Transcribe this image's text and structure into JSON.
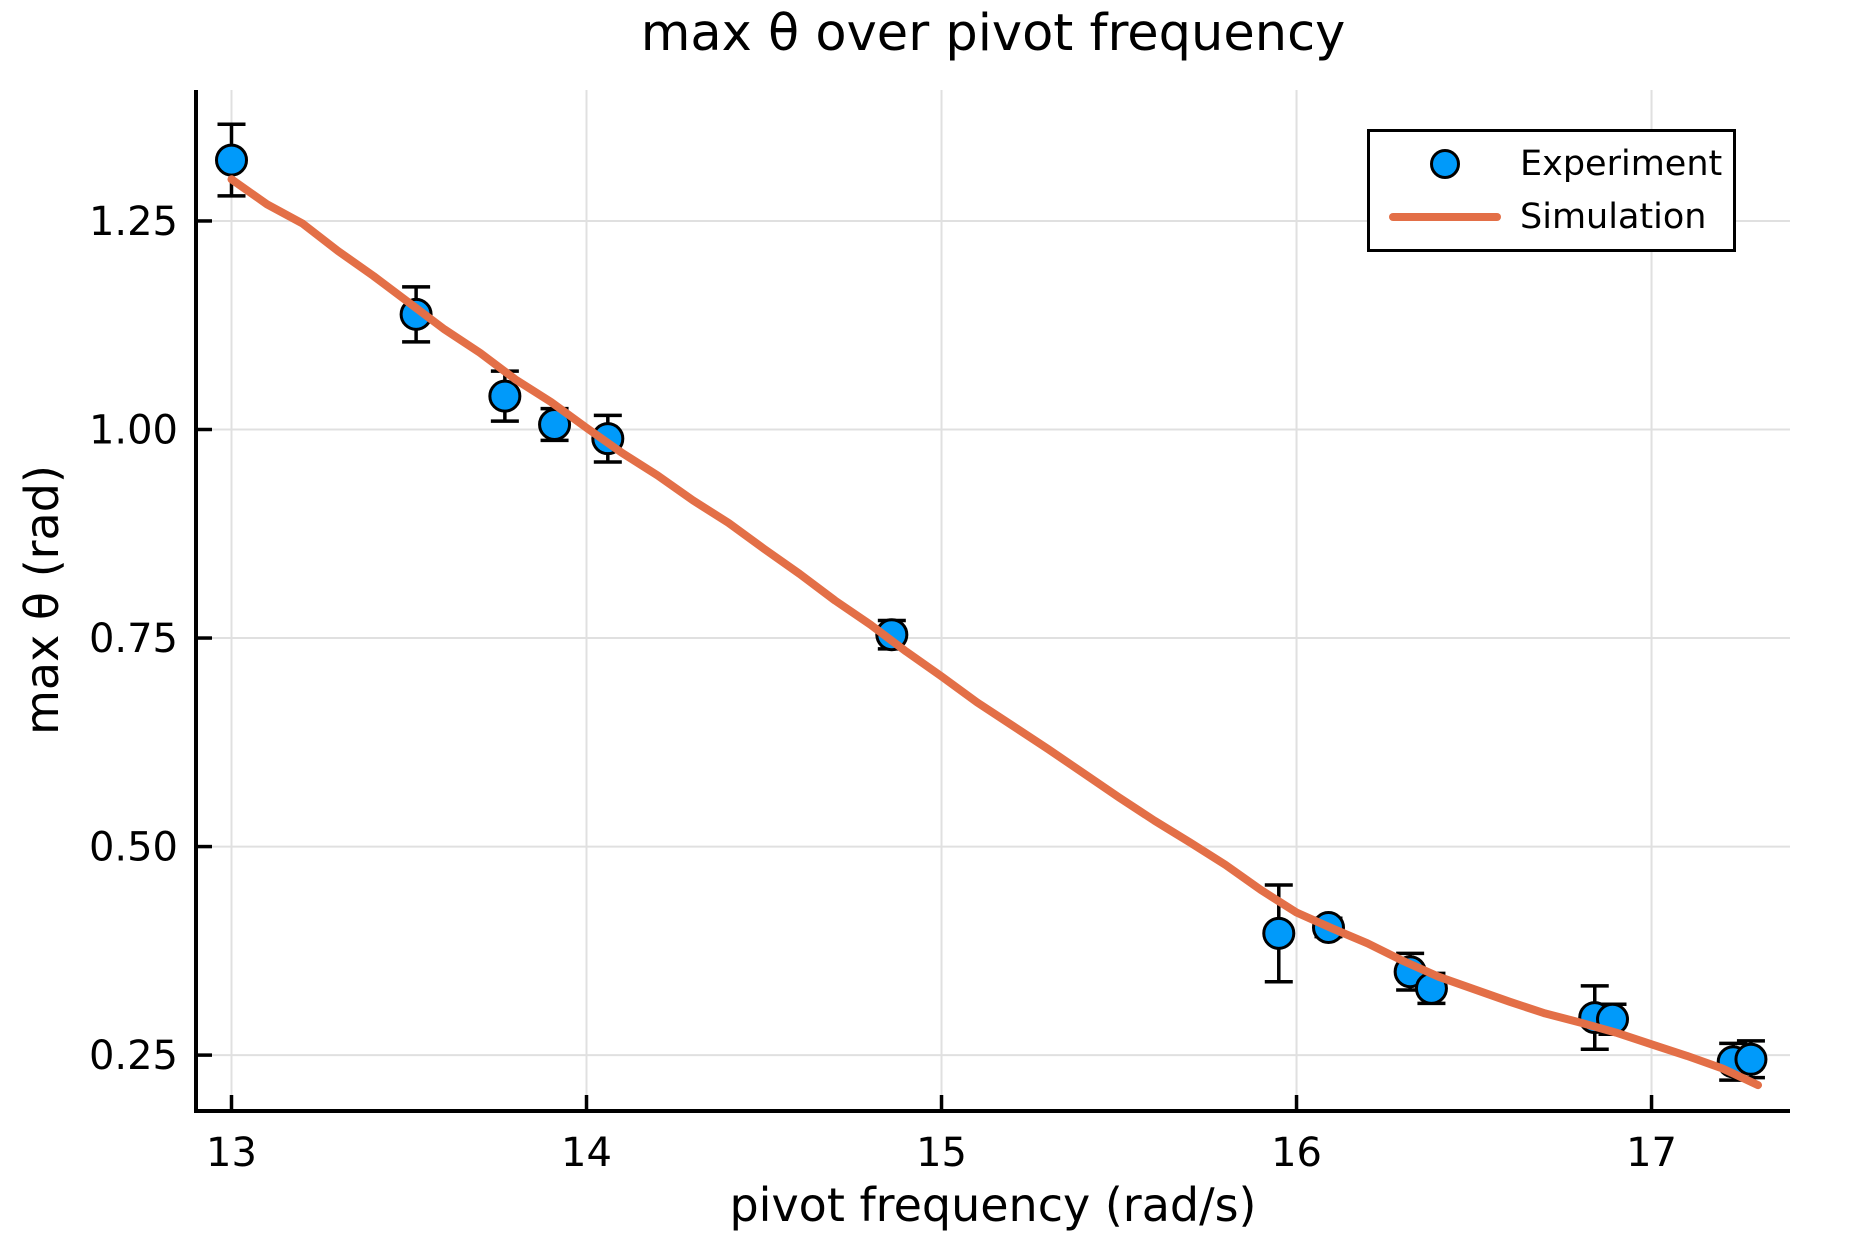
{
  "chart_data": {
    "type": "scatter",
    "title": "max θ over pivot frequency",
    "xlabel": "pivot frequency (rad/s)",
    "ylabel": "max θ (rad)",
    "xlim": [
      12.9,
      17.39
    ],
    "ylim": [
      0.183,
      1.407
    ],
    "xticks": [
      13,
      14,
      15,
      16,
      17
    ],
    "xtick_labels": [
      "13",
      "14",
      "15",
      "16",
      "17"
    ],
    "yticks": [
      0.25,
      0.5,
      0.75,
      1.0,
      1.25
    ],
    "ytick_labels": [
      "0.25",
      "0.50",
      "0.75",
      "1.00",
      "1.25"
    ],
    "grid": true,
    "legend_position": "top-right",
    "colors": {
      "experiment": "#009AFA",
      "simulation": "#E36F47",
      "error_bar": "#000000",
      "marker_edge": "#000000",
      "grid": "#E0E0E0",
      "axis": "#000000"
    },
    "series": [
      {
        "name": "Experiment",
        "type": "scatter_errorbar",
        "points": [
          {
            "x": 13.0,
            "y": 1.323,
            "err": 0.043
          },
          {
            "x": 13.52,
            "y": 1.138,
            "err": 0.033
          },
          {
            "x": 13.77,
            "y": 1.04,
            "err": 0.03
          },
          {
            "x": 13.91,
            "y": 1.006,
            "err": 0.019
          },
          {
            "x": 14.06,
            "y": 0.989,
            "err": 0.028
          },
          {
            "x": 14.86,
            "y": 0.754,
            "err": 0.017
          },
          {
            "x": 15.95,
            "y": 0.396,
            "err": 0.058
          },
          {
            "x": 16.09,
            "y": 0.403,
            "err": 0.011
          },
          {
            "x": 16.32,
            "y": 0.35,
            "err": 0.022
          },
          {
            "x": 16.38,
            "y": 0.33,
            "err": 0.018
          },
          {
            "x": 16.84,
            "y": 0.295,
            "err": 0.038
          },
          {
            "x": 16.89,
            "y": 0.293,
            "err": 0.018
          },
          {
            "x": 17.23,
            "y": 0.242,
            "err": 0.022
          },
          {
            "x": 17.28,
            "y": 0.245,
            "err": 0.022
          }
        ]
      },
      {
        "name": "Simulation",
        "type": "line",
        "x": [
          13.0,
          13.1,
          13.2,
          13.3,
          13.4,
          13.5,
          13.6,
          13.7,
          13.8,
          13.9,
          14.0,
          14.1,
          14.2,
          14.3,
          14.4,
          14.5,
          14.6,
          14.7,
          14.8,
          14.9,
          15.0,
          15.1,
          15.2,
          15.3,
          15.4,
          15.5,
          15.6,
          15.7,
          15.8,
          15.9,
          16.0,
          16.1,
          16.2,
          16.3,
          16.4,
          16.5,
          16.6,
          16.7,
          16.8,
          16.9,
          17.0,
          17.1,
          17.2,
          17.3
        ],
        "y": [
          1.3,
          1.27,
          1.247,
          1.214,
          1.184,
          1.152,
          1.12,
          1.092,
          1.06,
          1.033,
          1.002,
          0.972,
          0.945,
          0.915,
          0.888,
          0.857,
          0.827,
          0.795,
          0.766,
          0.734,
          0.704,
          0.673,
          0.645,
          0.617,
          0.588,
          0.559,
          0.531,
          0.505,
          0.478,
          0.448,
          0.421,
          0.402,
          0.384,
          0.363,
          0.344,
          0.329,
          0.314,
          0.3,
          0.289,
          0.277,
          0.263,
          0.249,
          0.234,
          0.214
        ]
      }
    ]
  }
}
